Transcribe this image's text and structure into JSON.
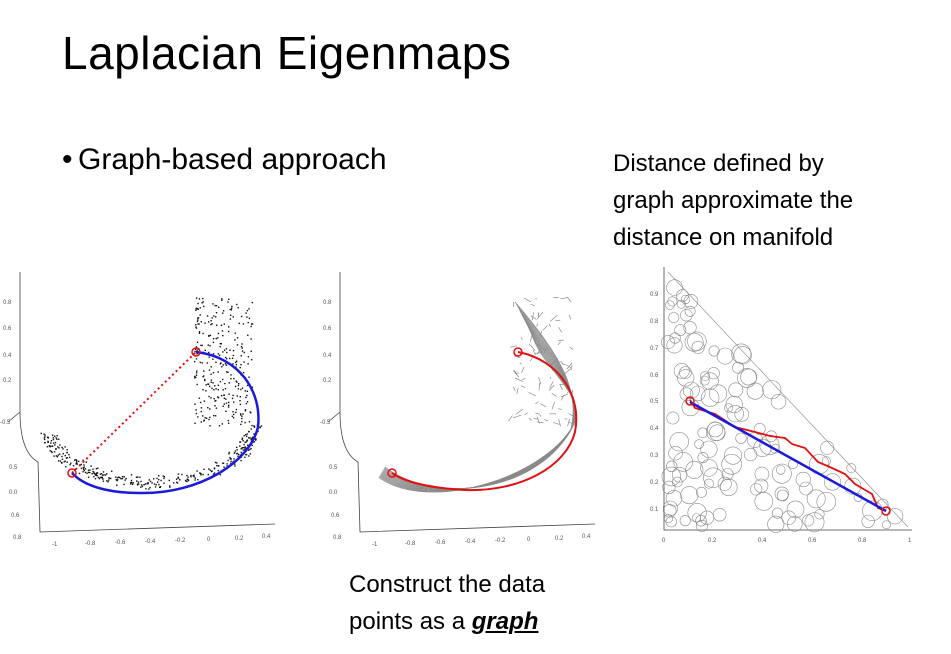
{
  "slide": {
    "title": "Laplacian Eigenmaps",
    "bullet": "Graph-based approach",
    "note_lines": [
      "Distance defined by",
      "graph approximate the",
      "distance on manifold"
    ],
    "caption_line1": "Construct the data",
    "caption_line2_prefix": "points as a ",
    "caption_line2_emph": "graph"
  },
  "colors": {
    "geodesic": "#1a1adc",
    "euclidean": "#e01010",
    "graph_path": "#e01010",
    "edges": "#8a8a8a",
    "points": "#111111"
  }
}
